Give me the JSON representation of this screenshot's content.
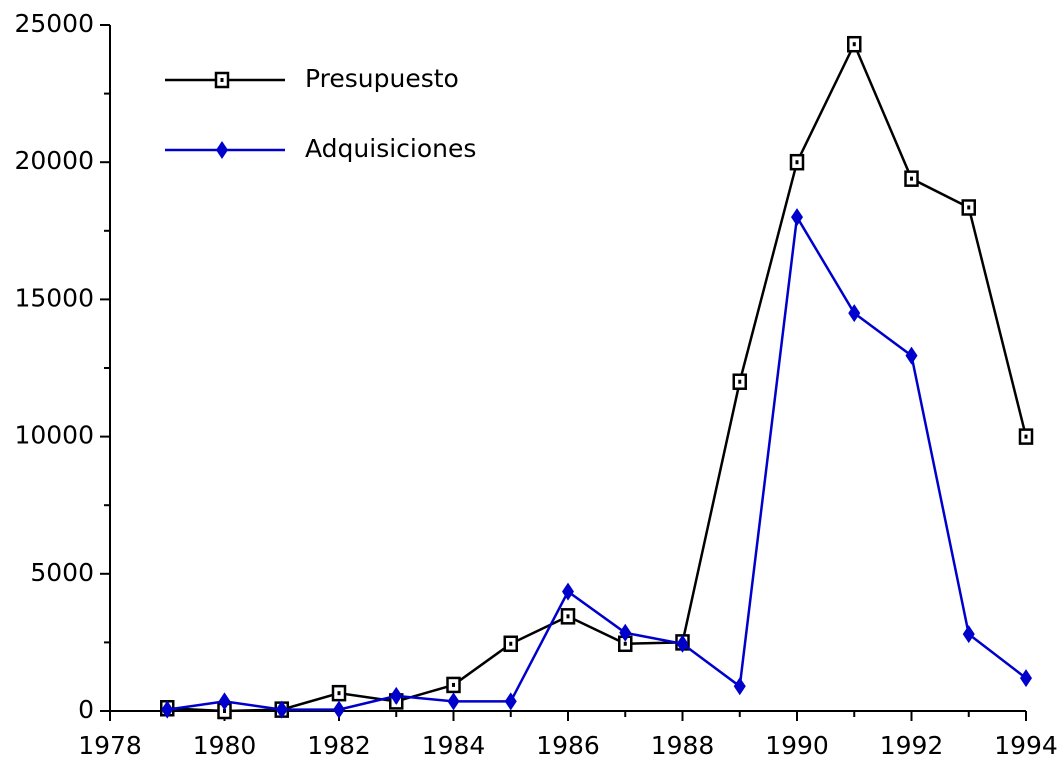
{
  "chart_data": {
    "type": "line",
    "x": [
      1979,
      1980,
      1981,
      1982,
      1983,
      1984,
      1985,
      1986,
      1987,
      1988,
      1989,
      1990,
      1991,
      1992,
      1993,
      1994
    ],
    "series": [
      {
        "name": "Presupuesto",
        "color": "#000000",
        "marker": "square",
        "values": [
          100,
          0,
          50,
          650,
          350,
          950,
          2450,
          3450,
          2450,
          2500,
          12000,
          20000,
          24300,
          19400,
          18350,
          10000
        ]
      },
      {
        "name": "Adquisiciones",
        "color": "#0000cc",
        "marker": "diamond",
        "values": [
          50,
          350,
          50,
          50,
          550,
          350,
          350,
          4350,
          2850,
          2450,
          900,
          18000,
          14500,
          12950,
          2800,
          1200
        ]
      }
    ],
    "xlim": [
      1978,
      1994
    ],
    "xticks": [
      1978,
      1980,
      1982,
      1984,
      1986,
      1988,
      1990,
      1992,
      1994
    ],
    "ylim": [
      0,
      25000
    ],
    "yticks": [
      0,
      5000,
      10000,
      15000,
      20000,
      25000
    ],
    "grid": false,
    "legend": "upper left"
  }
}
